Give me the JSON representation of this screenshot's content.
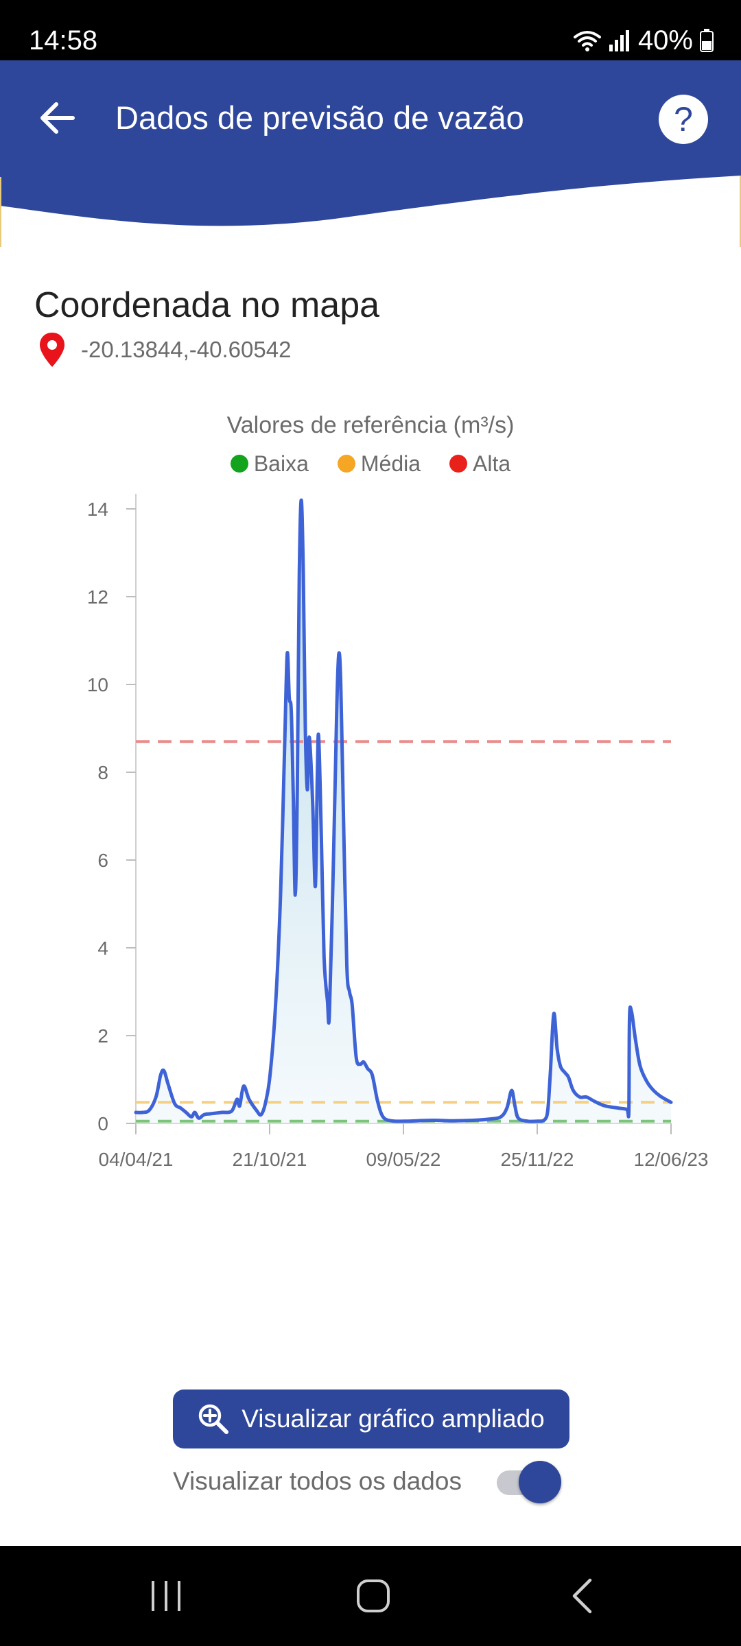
{
  "status_bar": {
    "time": "14:58",
    "battery": "40%"
  },
  "header": {
    "title": "Dados de previsão de vazão",
    "help_label": "?"
  },
  "coordinates": {
    "title": "Coordenada no mapa",
    "value": "-20.13844,-40.60542"
  },
  "chart_data": {
    "type": "line",
    "title": "Valores de referência (m³/s)",
    "legend": [
      {
        "name": "Baixa",
        "color": "#14a31d"
      },
      {
        "name": "Média",
        "color": "#f5a623"
      },
      {
        "name": "Alta",
        "color": "#e8211b"
      }
    ],
    "ylim": [
      0,
      14
    ],
    "y_ticks": [
      0,
      2,
      4,
      6,
      8,
      10,
      12,
      14
    ],
    "x_ticks": [
      "04/04/21",
      "21/10/21",
      "09/05/22",
      "25/11/22",
      "12/06/23"
    ],
    "xlim": [
      "2021-04-04",
      "2023-06-12"
    ],
    "grid": false,
    "reference_lines": [
      {
        "name": "Baixa",
        "value": 0.05,
        "color": "#7cc47a"
      },
      {
        "name": "Média",
        "value": 0.48,
        "color": "#f5d080"
      },
      {
        "name": "Alta",
        "value": 8.7,
        "color": "#ea8c8c"
      }
    ],
    "series": [
      {
        "color": "#3e63d6",
        "points": [
          [
            "2021-04-04",
            0.25
          ],
          [
            "2021-04-14",
            0.25
          ],
          [
            "2021-04-24",
            0.3
          ],
          [
            "2021-05-04",
            0.6
          ],
          [
            "2021-05-11",
            1.1
          ],
          [
            "2021-05-16",
            1.2
          ],
          [
            "2021-05-22",
            0.9
          ],
          [
            "2021-06-01",
            0.45
          ],
          [
            "2021-06-10",
            0.35
          ],
          [
            "2021-06-18",
            0.25
          ],
          [
            "2021-06-26",
            0.15
          ],
          [
            "2021-07-01",
            0.25
          ],
          [
            "2021-07-07",
            0.12
          ],
          [
            "2021-07-15",
            0.2
          ],
          [
            "2021-07-25",
            0.22
          ],
          [
            "2021-08-10",
            0.25
          ],
          [
            "2021-08-25",
            0.28
          ],
          [
            "2021-09-02",
            0.55
          ],
          [
            "2021-09-06",
            0.4
          ],
          [
            "2021-09-12",
            0.85
          ],
          [
            "2021-09-20",
            0.55
          ],
          [
            "2021-10-01",
            0.3
          ],
          [
            "2021-10-08",
            0.2
          ],
          [
            "2021-10-15",
            0.5
          ],
          [
            "2021-10-22",
            1.2
          ],
          [
            "2021-10-30",
            2.8
          ],
          [
            "2021-11-06",
            5.2
          ],
          [
            "2021-11-12",
            8.5
          ],
          [
            "2021-11-16",
            10.7
          ],
          [
            "2021-11-19",
            9.7
          ],
          [
            "2021-11-22",
            9.4
          ],
          [
            "2021-11-25",
            7.5
          ],
          [
            "2021-11-28",
            5.2
          ],
          [
            "2021-12-01",
            7.6
          ],
          [
            "2021-12-04",
            12.5
          ],
          [
            "2021-12-07",
            14.2
          ],
          [
            "2021-12-10",
            12.5
          ],
          [
            "2021-12-13",
            9.0
          ],
          [
            "2021-12-16",
            7.6
          ],
          [
            "2021-12-19",
            8.8
          ],
          [
            "2021-12-24",
            7.3
          ],
          [
            "2021-12-28",
            5.4
          ],
          [
            "2021-12-31",
            8.0
          ],
          [
            "2022-01-02",
            8.8
          ],
          [
            "2022-01-06",
            6.5
          ],
          [
            "2022-01-10",
            3.8
          ],
          [
            "2022-01-15",
            2.8
          ],
          [
            "2022-01-18",
            2.5
          ],
          [
            "2022-01-24",
            6.0
          ],
          [
            "2022-01-29",
            9.5
          ],
          [
            "2022-02-01",
            10.7
          ],
          [
            "2022-02-04",
            10.0
          ],
          [
            "2022-02-08",
            7.0
          ],
          [
            "2022-02-13",
            3.6
          ],
          [
            "2022-02-17",
            3.0
          ],
          [
            "2022-02-21",
            2.7
          ],
          [
            "2022-02-27",
            1.5
          ],
          [
            "2022-03-05",
            1.35
          ],
          [
            "2022-03-10",
            1.4
          ],
          [
            "2022-03-16",
            1.25
          ],
          [
            "2022-03-23",
            1.1
          ],
          [
            "2022-03-31",
            0.5
          ],
          [
            "2022-04-08",
            0.15
          ],
          [
            "2022-04-20",
            0.06
          ],
          [
            "2022-05-10",
            0.05
          ],
          [
            "2022-06-20",
            0.07
          ],
          [
            "2022-07-20",
            0.06
          ],
          [
            "2022-08-20",
            0.07
          ],
          [
            "2022-09-15",
            0.1
          ],
          [
            "2022-10-01",
            0.15
          ],
          [
            "2022-10-10",
            0.35
          ],
          [
            "2022-10-17",
            0.75
          ],
          [
            "2022-10-22",
            0.4
          ],
          [
            "2022-10-27",
            0.12
          ],
          [
            "2022-11-10",
            0.05
          ],
          [
            "2022-11-25",
            0.05
          ],
          [
            "2022-12-05",
            0.08
          ],
          [
            "2022-12-10",
            0.3
          ],
          [
            "2022-12-14",
            1.2
          ],
          [
            "2022-12-19",
            2.5
          ],
          [
            "2022-12-24",
            1.7
          ],
          [
            "2022-12-29",
            1.3
          ],
          [
            "2023-01-05",
            1.15
          ],
          [
            "2023-01-10",
            1.05
          ],
          [
            "2023-01-17",
            0.75
          ],
          [
            "2023-01-27",
            0.6
          ],
          [
            "2023-02-06",
            0.6
          ],
          [
            "2023-02-18",
            0.5
          ],
          [
            "2023-03-05",
            0.4
          ],
          [
            "2023-03-25",
            0.35
          ],
          [
            "2023-04-07",
            0.32
          ],
          [
            "2023-04-10",
            0.25
          ],
          [
            "2023-04-11",
            2.4
          ],
          [
            "2023-04-14",
            2.55
          ],
          [
            "2023-04-20",
            1.9
          ],
          [
            "2023-04-27",
            1.3
          ],
          [
            "2023-05-07",
            0.95
          ],
          [
            "2023-05-17",
            0.75
          ],
          [
            "2023-05-27",
            0.62
          ],
          [
            "2023-06-12",
            0.48
          ]
        ]
      }
    ]
  },
  "actions": {
    "expand_label": "Visualizar gráfico ampliado",
    "toggle_label": "Visualizar todos os dados",
    "toggle_on": true
  }
}
